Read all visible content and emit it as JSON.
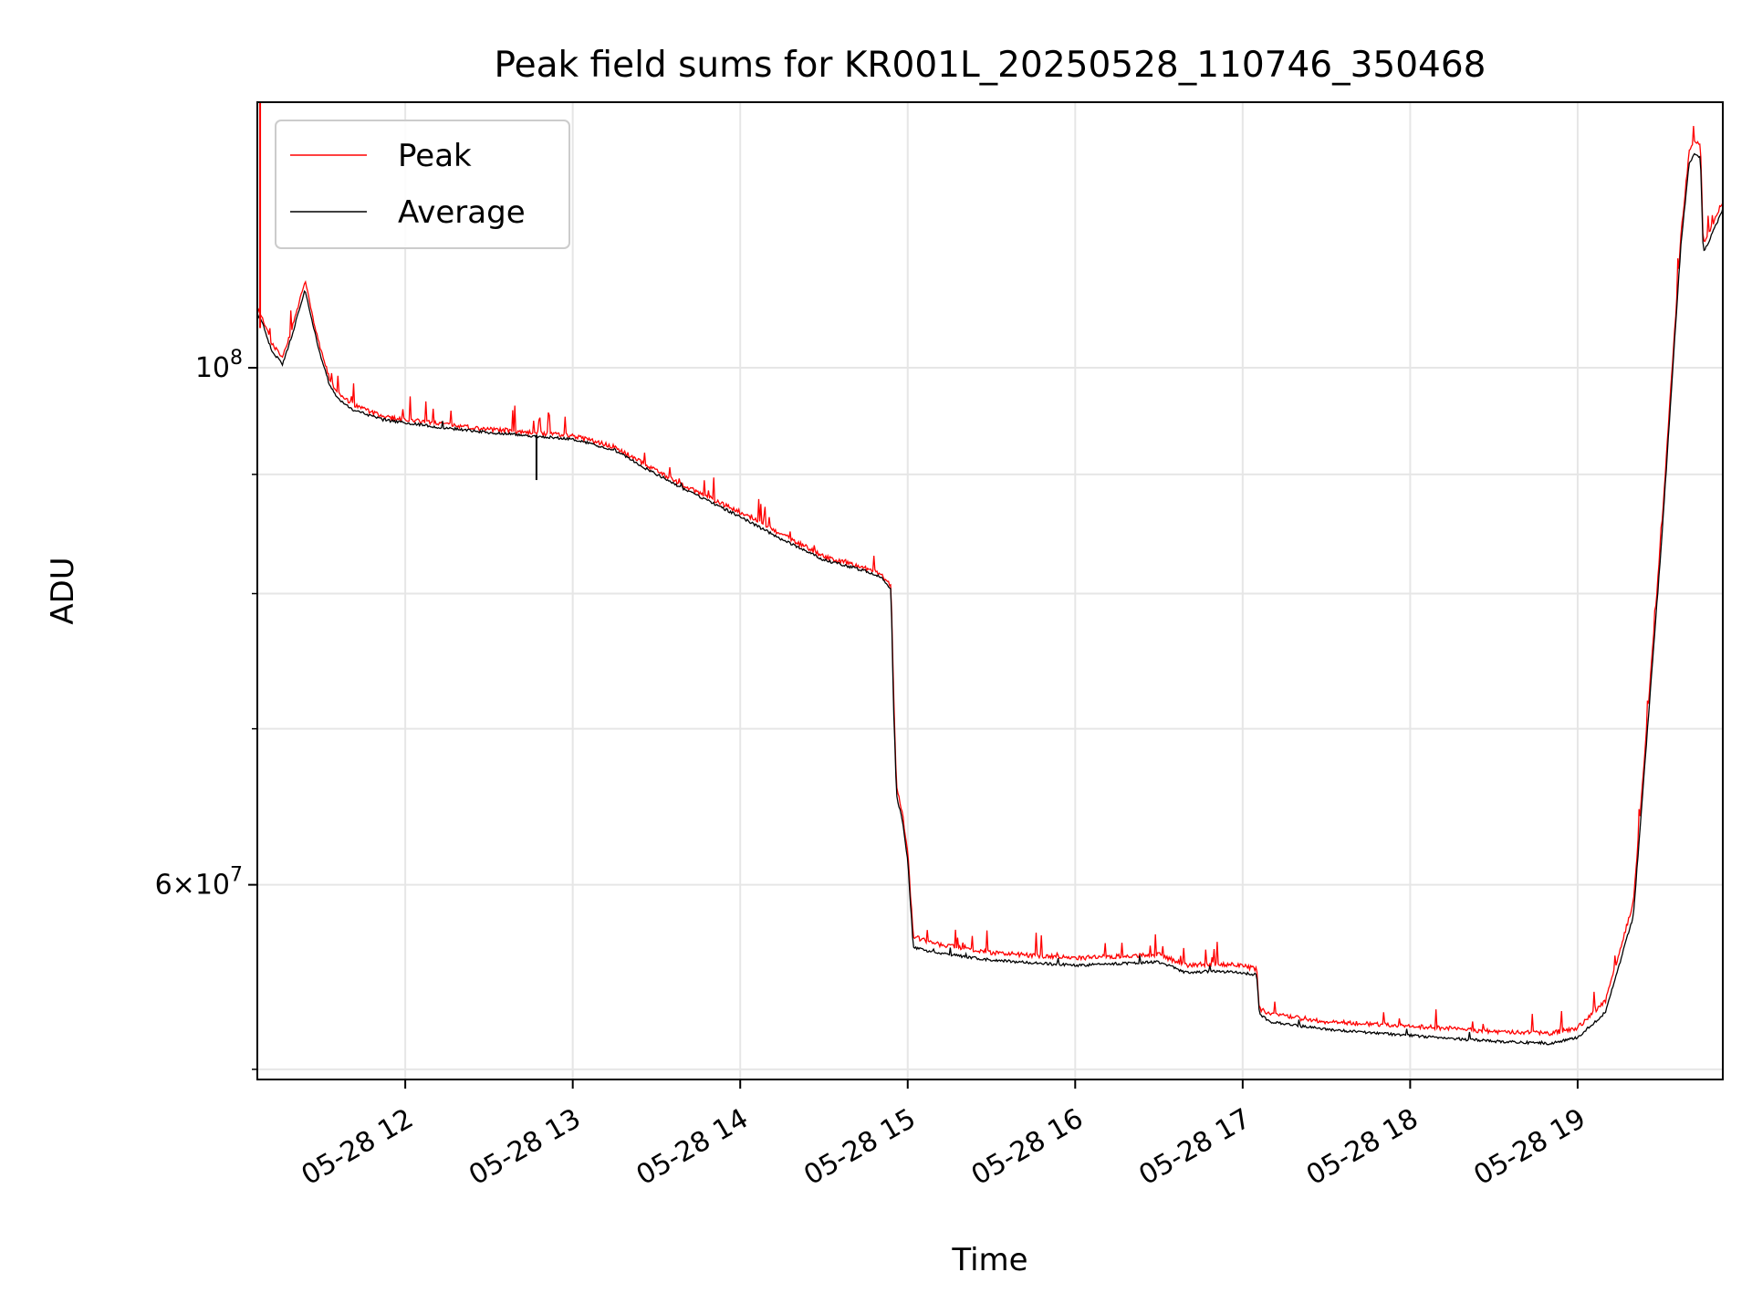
{
  "chart_data": {
    "type": "line",
    "title": "Peak field sums for KR001L_20250528_110746_350468",
    "xlabel": "Time",
    "ylabel": "ADU",
    "yscale": "log",
    "ylim": [
      49500000,
      130000000
    ],
    "xlim": [
      "2025-05-28 11:07",
      "2025-05-28 19:52"
    ],
    "grid": true,
    "legend": {
      "placement": "top-left",
      "entries": [
        "Peak",
        "Average"
      ]
    },
    "x_ticks": [
      "05-28 12",
      "05-28 13",
      "05-28 14",
      "05-28 15",
      "05-28 16",
      "05-28 17",
      "05-28 18",
      "05-28 19"
    ],
    "y_ticks": [
      {
        "value": 100000000,
        "base": "10",
        "exp": "8",
        "mantissa": ""
      },
      {
        "value": 60000000,
        "base": "10",
        "exp": "7",
        "mantissa": "6×"
      }
    ],
    "y_minor_ticks": [
      50000000,
      70000000,
      80000000,
      90000000
    ],
    "series": [
      {
        "name": "Peak",
        "color": "#ff0000",
        "x": [
          "2025-05-28 11:07",
          "2025-05-28 11:09",
          "2025-05-28 11:12",
          "2025-05-28 11:16",
          "2025-05-28 11:20",
          "2025-05-28 11:24",
          "2025-05-28 11:27",
          "2025-05-28 11:30",
          "2025-05-28 11:33",
          "2025-05-28 11:36",
          "2025-05-28 11:40",
          "2025-05-28 11:45",
          "2025-05-28 11:52",
          "2025-05-28 12:00",
          "2025-05-28 12:15",
          "2025-05-28 12:30",
          "2025-05-28 12:45",
          "2025-05-28 13:00",
          "2025-05-28 13:15",
          "2025-05-28 13:25",
          "2025-05-28 13:40",
          "2025-05-28 14:00",
          "2025-05-28 14:15",
          "2025-05-28 14:30",
          "2025-05-28 14:45",
          "2025-05-28 14:50",
          "2025-05-28 14:54",
          "2025-05-28 14:55",
          "2025-05-28 14:56",
          "2025-05-28 14:58",
          "2025-05-28 15:00",
          "2025-05-28 15:02",
          "2025-05-28 15:10",
          "2025-05-28 15:30",
          "2025-05-28 16:00",
          "2025-05-28 16:30",
          "2025-05-28 16:40",
          "2025-05-28 16:50",
          "2025-05-28 17:00",
          "2025-05-28 17:05",
          "2025-05-28 17:06",
          "2025-05-28 17:10",
          "2025-05-28 17:30",
          "2025-05-28 18:00",
          "2025-05-28 18:30",
          "2025-05-28 18:50",
          "2025-05-28 19:00",
          "2025-05-28 19:10",
          "2025-05-28 19:20",
          "2025-05-28 19:30",
          "2025-05-28 19:37",
          "2025-05-28 19:40",
          "2025-05-28 19:42",
          "2025-05-28 19:44",
          "2025-05-28 19:45",
          "2025-05-28 19:48",
          "2025-05-28 19:52"
        ],
        "y": [
          106000000,
          105000000,
          102500000,
          101000000,
          104500000,
          109000000,
          105000000,
          101500000,
          98800000,
          97600000,
          96600000,
          96000000,
          95300000,
          95000000,
          94500000,
          94100000,
          93800000,
          93500000,
          92500000,
          91000000,
          89000000,
          86700000,
          84800000,
          83000000,
          82000000,
          81600000,
          80600000,
          72000000,
          66000000,
          64500000,
          62000000,
          57000000,
          56600000,
          56100000,
          55800000,
          56000000,
          55400000,
          55500000,
          55400000,
          55200000,
          53100000,
          52800000,
          52400000,
          52200000,
          51900000,
          51800000,
          52100000,
          53500000,
          59000000,
          85000000,
          114000000,
          124000000,
          125000000,
          124600000,
          113000000,
          115000000,
          118000000
        ]
      },
      {
        "name": "Average",
        "color": "#000000",
        "x": [
          "2025-05-28 11:07",
          "2025-05-28 11:09",
          "2025-05-28 11:12",
          "2025-05-28 11:16",
          "2025-05-28 11:20",
          "2025-05-28 11:24",
          "2025-05-28 11:27",
          "2025-05-28 11:30",
          "2025-05-28 11:33",
          "2025-05-28 11:36",
          "2025-05-28 11:40",
          "2025-05-28 11:45",
          "2025-05-28 11:52",
          "2025-05-28 12:00",
          "2025-05-28 12:15",
          "2025-05-28 12:30",
          "2025-05-28 12:45",
          "2025-05-28 13:00",
          "2025-05-28 13:15",
          "2025-05-28 13:25",
          "2025-05-28 13:40",
          "2025-05-28 14:00",
          "2025-05-28 14:15",
          "2025-05-28 14:30",
          "2025-05-28 14:45",
          "2025-05-28 14:50",
          "2025-05-28 14:54",
          "2025-05-28 14:55",
          "2025-05-28 14:56",
          "2025-05-28 14:58",
          "2025-05-28 15:00",
          "2025-05-28 15:02",
          "2025-05-28 15:10",
          "2025-05-28 15:30",
          "2025-05-28 16:00",
          "2025-05-28 16:30",
          "2025-05-28 16:40",
          "2025-05-28 16:50",
          "2025-05-28 17:00",
          "2025-05-28 17:05",
          "2025-05-28 17:06",
          "2025-05-28 17:10",
          "2025-05-28 17:30",
          "2025-05-28 18:00",
          "2025-05-28 18:30",
          "2025-05-28 18:50",
          "2025-05-28 19:00",
          "2025-05-28 19:10",
          "2025-05-28 19:20",
          "2025-05-28 19:30",
          "2025-05-28 19:37",
          "2025-05-28 19:40",
          "2025-05-28 19:42",
          "2025-05-28 19:44",
          "2025-05-28 19:45",
          "2025-05-28 19:48",
          "2025-05-28 19:52"
        ],
        "y": [
          105500000,
          104500000,
          101800000,
          100300000,
          103800000,
          108000000,
          104200000,
          100800000,
          98200000,
          97000000,
          96100000,
          95600000,
          95000000,
          94700000,
          94200000,
          93800000,
          93500000,
          93200000,
          92200000,
          90700000,
          88700000,
          86300000,
          84400000,
          82700000,
          81800000,
          81400000,
          80400000,
          71000000,
          65500000,
          64000000,
          61500000,
          56400000,
          56100000,
          55700000,
          55400000,
          55600000,
          55000000,
          55100000,
          55000000,
          54900000,
          52800000,
          52400000,
          52000000,
          51700000,
          51400000,
          51300000,
          51600000,
          52900000,
          58200000,
          84000000,
          113000000,
          122500000,
          123500000,
          123000000,
          112000000,
          114000000,
          117000000
        ]
      }
    ],
    "annotations": [
      {
        "series": "Peak",
        "x": "2025-05-28 11:08",
        "y": 130000000,
        "note": "spike"
      },
      {
        "series": "Average",
        "x": "2025-05-28 12:47",
        "y": 89500000,
        "note": "dip"
      }
    ]
  }
}
